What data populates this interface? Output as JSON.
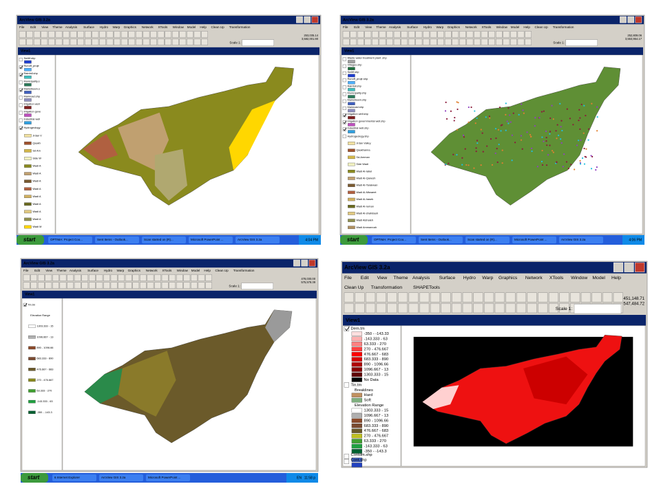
{
  "windows": [
    {
      "title": "ArcView GIS 3.2a",
      "menu": [
        "File",
        "Edit",
        "View",
        "Theme",
        "Analysis",
        "Surface",
        "Hydro",
        "Warp",
        "Graphics",
        "Network",
        "XTools",
        "Window",
        "Model",
        "Help",
        "Clean Up",
        "Transformation"
      ],
      "view_title": "View1",
      "scale_label": "Scale 1:",
      "coords": [
        "253,035.14",
        "3,582,001.90"
      ],
      "legend": [
        {
          "label": "Swllrf.shp",
          "checked": false,
          "color": "#1f3fd0"
        },
        {
          "label": "Runoff_proje",
          "checked": true,
          "color": "#4fb0ff"
        },
        {
          "label": "Rainfall.shp",
          "checked": true,
          "color": "#40c0c0"
        },
        {
          "label": "Municipality.s",
          "checked": false,
          "color": "#2a7a5a"
        },
        {
          "label": "Mainstream.s",
          "checked": true,
          "color": "#4060c0"
        },
        {
          "label": "Mainroad.shp",
          "checked": false,
          "color": "#9090c0"
        },
        {
          "label": "Irrigation well",
          "checked": false,
          "color": "#802020"
        },
        {
          "label": "Irrigation gove",
          "checked": false,
          "color": "#c050c0"
        },
        {
          "label": "Industrial well",
          "checked": false,
          "color": "#30a0e0"
        },
        {
          "label": "Hydrogeology",
          "checked": true
        },
        {
          "label": "Jrdan V",
          "color": "#f0e0a0"
        },
        {
          "label": "Qaakh",
          "color": "#a0522d"
        },
        {
          "label": "Sd Am",
          "color": "#d4b84a"
        },
        {
          "label": "Side W",
          "color": "#f0f0c0"
        },
        {
          "label": "Wadi A",
          "color": "#8a8a1e"
        },
        {
          "label": "Wadi A",
          "color": "#c0a070"
        },
        {
          "label": "Wadi A",
          "color": "#7a5a30"
        },
        {
          "label": "Wadi A",
          "color": "#b06040"
        },
        {
          "label": "Wadi A",
          "color": "#d0b060"
        },
        {
          "label": "Wadi A",
          "color": "#6a6a20"
        },
        {
          "label": "Wadi A",
          "color": "#e0c880"
        },
        {
          "label": "Wadi A",
          "color": "#909050"
        },
        {
          "label": "Wadi M",
          "color": "#ffd700"
        }
      ],
      "taskbar": {
        "start": "start",
        "items": [
          "OPTIMA: Project Coo...",
          "Sent Items - Outlook...",
          "Scan started on (R)...",
          "Microsoft PowerPoint ...",
          "ArcView GIS 3.2a"
        ],
        "tray": [
          "4:04 PM"
        ]
      }
    },
    {
      "title": "ArcView GIS 3.2a",
      "menu": [
        "File",
        "Edit",
        "View",
        "Theme",
        "Analysis",
        "Surface",
        "Hydro",
        "Warp",
        "Graphics",
        "Network",
        "XTools",
        "Window",
        "Model",
        "Help",
        "Clean Up",
        "Transformation"
      ],
      "view_title": "View1",
      "scale_label": "Scale 1:",
      "coords": [
        "252,809.06",
        "3,553,954.17"
      ],
      "legend": [
        {
          "label": "Waste water treatment plant .shp",
          "checked": false,
          "color": "#a0a0a0"
        },
        {
          "label": "Villages.shp",
          "checked": false,
          "color": "#207040"
        },
        {
          "label": "Swllrf.shp",
          "checked": false,
          "color": "#1f3fd0"
        },
        {
          "label": "Runoff_proje.shp",
          "checked": false,
          "color": "#4fb0ff"
        },
        {
          "label": "Rainfall.shp",
          "checked": false,
          "color": "#40c0c0"
        },
        {
          "label": "Municipality.shp",
          "checked": false,
          "color": "#2a7a5a"
        },
        {
          "label": "Mainstream.shp",
          "checked": false,
          "color": "#4060c0"
        },
        {
          "label": "Mainroad.shp",
          "checked": false,
          "color": "#9090c0"
        },
        {
          "label": "Irrigation well.shp",
          "checked": true,
          "color": "#802020"
        },
        {
          "label": "Irrigation governmental well.shp",
          "checked": true,
          "color": "#c050c0"
        },
        {
          "label": "Industrial well.shp",
          "checked": true,
          "color": "#30a0e0"
        },
        {
          "label": "Hydrogeology.shp",
          "checked": false
        },
        {
          "label": "Jrdan Valley",
          "color": "#f0e0a0"
        },
        {
          "label": "Qaakhanna",
          "color": "#a0522d"
        },
        {
          "label": "Sd-Amman",
          "color": "#d4b84a"
        },
        {
          "label": "Side Wadi",
          "color": "#f0f0c0"
        },
        {
          "label": "Wadi Al-Iabel",
          "color": "#8a8a1e"
        },
        {
          "label": "Wadi Al-Qanesh",
          "color": "#c0a070"
        },
        {
          "label": "Wadi Al-Tarakwan",
          "color": "#7a5a30"
        },
        {
          "label": "Wadi Al-Mtwaeet",
          "color": "#b06040"
        },
        {
          "label": "Wadi Al-hasek",
          "color": "#d0b060"
        },
        {
          "label": "Wadi Al-ruman",
          "color": "#6a6a20"
        },
        {
          "label": "Wadi Al-shahdaah",
          "color": "#e0c880"
        },
        {
          "label": "Wadi Alshaleh",
          "color": "#909050"
        },
        {
          "label": "Wadi Ammannah",
          "color": "#b09060"
        }
      ],
      "taskbar": {
        "start": "start",
        "items": [
          "OPTIMA: Project Coo...",
          "Sent Items - Outlook...",
          "Scan started on (R)...",
          "Microsoft PowerPoint ...",
          "ArcView GIS 3.2a"
        ],
        "tray": [
          "4:06 PM"
        ]
      }
    },
    {
      "title": "ArcView GIS 3.2a",
      "menu": [
        "File",
        "Edit",
        "View",
        "Theme",
        "Analysis",
        "Surface",
        "Hydro",
        "Warp",
        "Graphics",
        "Network",
        "XTools",
        "Window",
        "Model",
        "Help",
        "Clean Up",
        "Transformation"
      ],
      "view_title": "View1",
      "scale_label": "Scale 1:",
      "coords": [
        "478,030.00",
        "575,578.39"
      ],
      "legend": [
        {
          "label": "Tin.tm",
          "checked": true
        },
        {
          "label": "Elevation Range"
        },
        {
          "label": "1303.333 - 15",
          "color": "#ffffff"
        },
        {
          "label": "1096.667 - 13",
          "color": "#b0b0b0"
        },
        {
          "label": "890 - 1096.66",
          "color": "#8b4a2b"
        },
        {
          "label": "683.333 - 890",
          "color": "#7a4a30"
        },
        {
          "label": "476.667 - 683",
          "color": "#6b5a2a"
        },
        {
          "label": "270 - 476.667",
          "color": "#8a8a1e"
        },
        {
          "label": "63.333 - 270",
          "color": "#40a030"
        },
        {
          "label": "-143.333 - 63",
          "color": "#20a040"
        },
        {
          "label": "-350 - -143.3",
          "color": "#006030"
        }
      ],
      "taskbar": {
        "start": "start",
        "items": [
          "6 Internet Explorer",
          "ArcView GIS 3.2a",
          "Microsoft PowerPoint ..."
        ],
        "tray": [
          "EN",
          "11:58 p"
        ]
      }
    },
    {
      "title": "ArcView GIS 3.2a",
      "menu": [
        "File",
        "Edit",
        "View",
        "Theme",
        "Analysis",
        "Surface",
        "Hydro",
        "Warp",
        "Graphics",
        "Network",
        "XTools",
        "Window",
        "Model",
        "Help",
        "Clean Up",
        "Transformation",
        "SHAPETools"
      ],
      "view_title": "View1",
      "scale_label": "Scale 1:",
      "coords": [
        "451,148.71",
        "547,484.72"
      ],
      "legend": [
        {
          "label": "Dem.tm",
          "checked": true
        },
        {
          "label": "-350 - -143.33",
          "color": "#ffe0e0"
        },
        {
          "label": "-143.333 - 63",
          "color": "#ffb0b0"
        },
        {
          "label": "63.333 - 270",
          "color": "#ff8080"
        },
        {
          "label": "270 - 476.667",
          "color": "#ff4040"
        },
        {
          "label": "476.667 - 683",
          "color": "#ff0000"
        },
        {
          "label": "683.333 - 890",
          "color": "#d80000"
        },
        {
          "label": "890 - 1096.66",
          "color": "#b00000"
        },
        {
          "label": "1096.667 - 13",
          "color": "#880000"
        },
        {
          "label": "1303.333 - 15",
          "color": "#600000"
        },
        {
          "label": "No Data",
          "color": "#000000"
        },
        {
          "label": "Tin.tm",
          "checked": false
        },
        {
          "label": "Breaklines"
        },
        {
          "label": "Hard",
          "color": "#c09060"
        },
        {
          "label": "Soft",
          "color": "#80b080"
        },
        {
          "label": "Elevation Range"
        },
        {
          "label": "1303.333 - 15",
          "color": "#ffffff"
        },
        {
          "label": "1096.667 - 13",
          "color": "#b0b0b0"
        },
        {
          "label": "890 - 1096.66",
          "color": "#8b4a2b"
        },
        {
          "label": "683.333 - 890",
          "color": "#7a4a30"
        },
        {
          "label": "476.667 - 683",
          "color": "#6b5a2a"
        },
        {
          "label": "270 - 476.667",
          "color": "#c0c020"
        },
        {
          "label": "63.333 - 270",
          "color": "#40a030"
        },
        {
          "label": "-143.333 - 63",
          "color": "#20a040"
        },
        {
          "label": "-350 - -143.3",
          "color": "#006030"
        },
        {
          "label": "Contdm.shp",
          "checked": false,
          "color": "#4060c0"
        },
        {
          "label": "Cont.shp",
          "checked": false,
          "color": "#2040c0"
        }
      ]
    }
  ]
}
